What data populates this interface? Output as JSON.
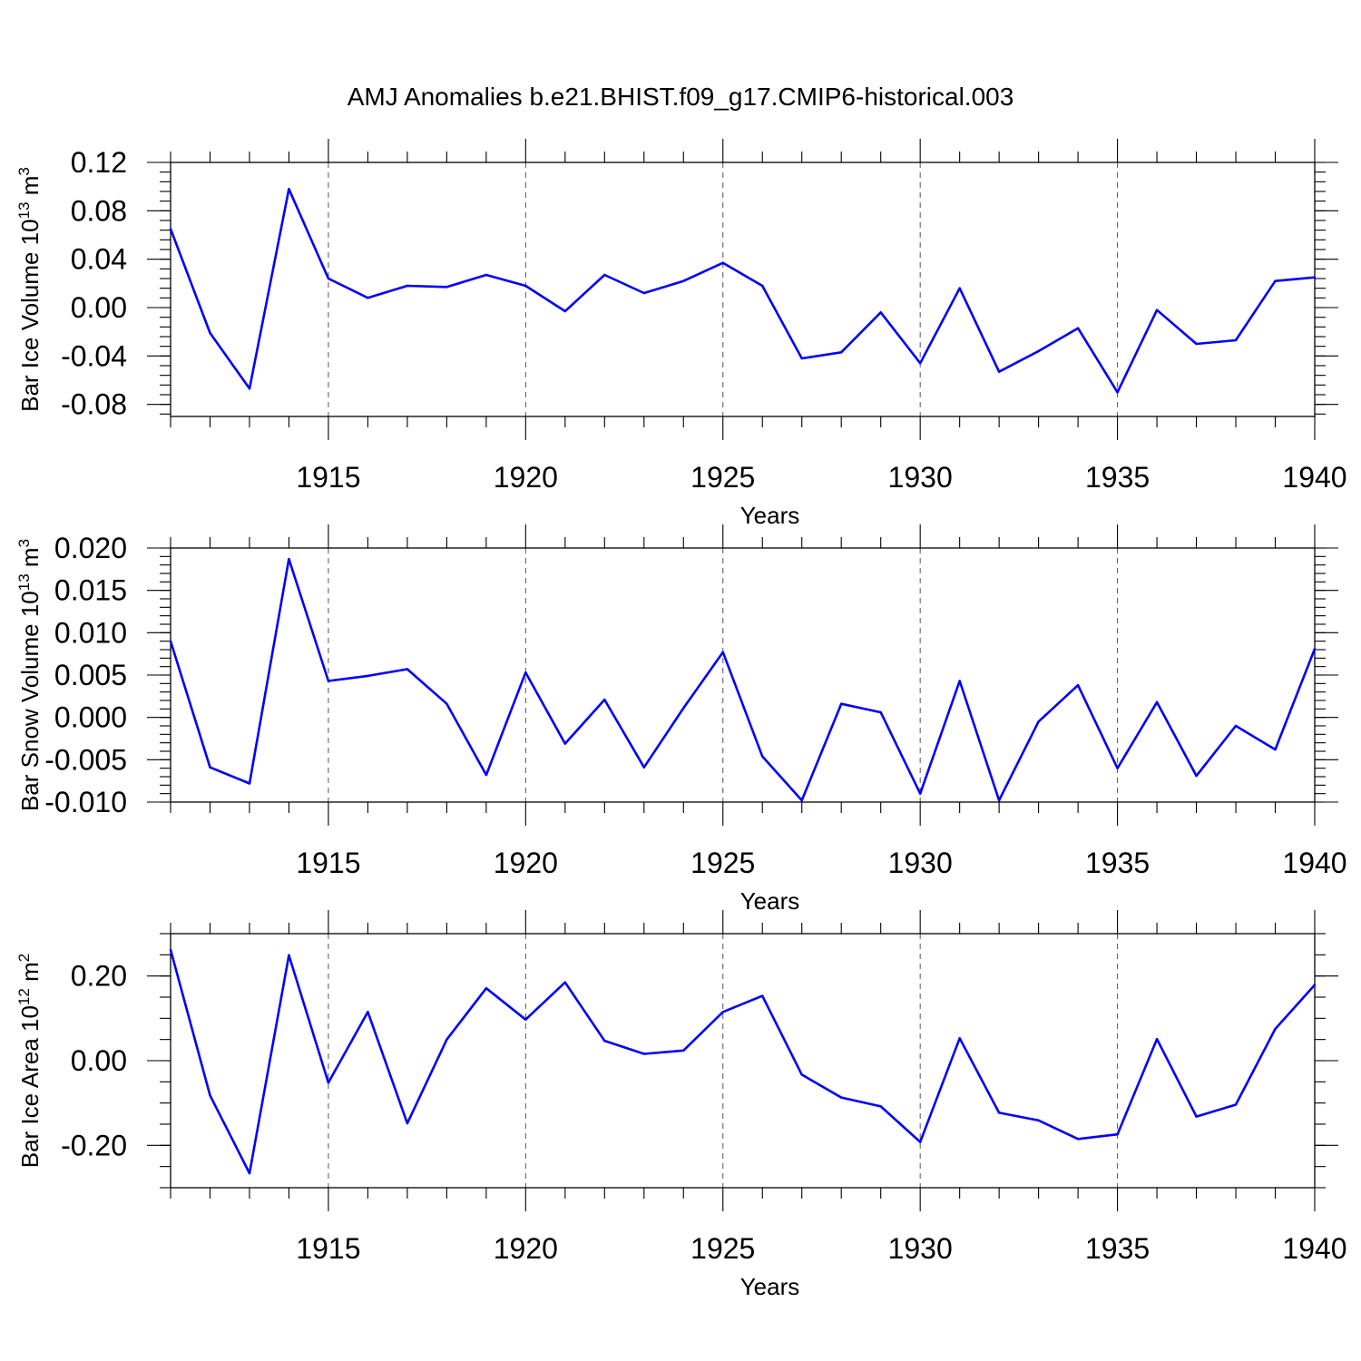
{
  "figure": {
    "title": "AMJ Anomalies b.e21.BHIST.f09_g17.CMIP6-historical.003"
  },
  "colors": {
    "series": "#0000ff",
    "axis": "#000000",
    "grid": "#555555"
  },
  "chart_data": [
    {
      "type": "line",
      "id": "ice-volume",
      "ylabel": "Bar Ice Volume 10",
      "ylabel_exp": "13",
      "ylabel_unit": " m",
      "ylabel_unit_exp": "3",
      "xlabel": "Years",
      "xlim": [
        1911,
        1940
      ],
      "ylim": [
        -0.09,
        0.12
      ],
      "yticks": [
        -0.08,
        -0.04,
        0.0,
        0.04,
        0.08,
        0.12
      ],
      "ytick_labels": [
        "-0.08",
        "-0.04",
        "0.00",
        "0.04",
        "0.08",
        "0.12"
      ],
      "yminor_step": 0.008,
      "xticks": [
        1915,
        1920,
        1925,
        1930,
        1935,
        1940
      ],
      "xtick_labels": [
        "1915",
        "1920",
        "1925",
        "1930",
        "1935",
        "1940"
      ],
      "x": [
        1911,
        1912,
        1913,
        1914,
        1915,
        1916,
        1917,
        1918,
        1919,
        1920,
        1921,
        1922,
        1923,
        1924,
        1925,
        1926,
        1927,
        1928,
        1929,
        1930,
        1931,
        1932,
        1933,
        1934,
        1935,
        1936,
        1937,
        1938,
        1939,
        1940
      ],
      "values": [
        0.065,
        -0.021,
        -0.067,
        0.098,
        0.024,
        0.008,
        0.018,
        0.017,
        0.027,
        0.018,
        -0.003,
        0.027,
        0.012,
        0.022,
        0.037,
        0.018,
        -0.042,
        -0.037,
        -0.004,
        -0.046,
        0.016,
        -0.053,
        -0.036,
        -0.017,
        -0.07,
        -0.002,
        -0.03,
        -0.027,
        0.022,
        0.025
      ]
    },
    {
      "type": "line",
      "id": "snow-volume",
      "ylabel": "Bar Snow Volume 10",
      "ylabel_exp": "13",
      "ylabel_unit": " m",
      "ylabel_unit_exp": "3",
      "xlabel": "Years",
      "xlim": [
        1911,
        1940
      ],
      "ylim": [
        -0.01,
        0.02
      ],
      "yticks": [
        -0.01,
        -0.005,
        0.0,
        0.005,
        0.01,
        0.015,
        0.02
      ],
      "ytick_labels": [
        "-0.010",
        "-0.005",
        "0.000",
        "0.005",
        "0.010",
        "0.015",
        "0.020"
      ],
      "yminor_step": 0.001,
      "xticks": [
        1915,
        1920,
        1925,
        1930,
        1935,
        1940
      ],
      "xtick_labels": [
        "1915",
        "1920",
        "1925",
        "1930",
        "1935",
        "1940"
      ],
      "x": [
        1911,
        1912,
        1913,
        1914,
        1915,
        1916,
        1917,
        1918,
        1919,
        1920,
        1921,
        1922,
        1923,
        1924,
        1925,
        1926,
        1927,
        1928,
        1929,
        1930,
        1931,
        1932,
        1933,
        1934,
        1935,
        1936,
        1937,
        1938,
        1939,
        1940
      ],
      "values": [
        0.009,
        -0.0059,
        -0.0078,
        0.0187,
        0.0043,
        0.0049,
        0.0057,
        0.0016,
        -0.0068,
        0.0053,
        -0.0031,
        0.0021,
        -0.0059,
        0.0011,
        0.0077,
        -0.0046,
        -0.0098,
        0.0016,
        0.0006,
        -0.009,
        0.0043,
        -0.0098,
        -0.0005,
        0.0038,
        -0.006,
        0.0018,
        -0.0069,
        -0.001,
        -0.0038,
        0.0081
      ]
    },
    {
      "type": "line",
      "id": "ice-area",
      "ylabel": "Bar Ice Area 10",
      "ylabel_exp": "12",
      "ylabel_unit": " m",
      "ylabel_unit_exp": "2",
      "xlabel": "Years",
      "xlim": [
        1911,
        1940
      ],
      "ylim": [
        -0.3,
        0.3
      ],
      "yticks": [
        -0.2,
        0.0,
        0.2
      ],
      "ytick_labels": [
        "-0.20",
        "0.00",
        "0.20"
      ],
      "yminor_step": 0.05,
      "xticks": [
        1915,
        1920,
        1925,
        1930,
        1935,
        1940
      ],
      "xtick_labels": [
        "1915",
        "1920",
        "1925",
        "1930",
        "1935",
        "1940"
      ],
      "x": [
        1911,
        1912,
        1913,
        1914,
        1915,
        1916,
        1917,
        1918,
        1919,
        1920,
        1921,
        1922,
        1923,
        1924,
        1925,
        1926,
        1927,
        1928,
        1929,
        1930,
        1931,
        1932,
        1933,
        1934,
        1935,
        1936,
        1937,
        1938,
        1939,
        1940
      ],
      "values": [
        0.262,
        -0.082,
        -0.266,
        0.249,
        -0.052,
        0.115,
        -0.148,
        0.05,
        0.171,
        0.097,
        0.185,
        0.047,
        0.016,
        0.024,
        0.115,
        0.153,
        -0.033,
        -0.087,
        -0.108,
        -0.192,
        0.053,
        -0.123,
        -0.141,
        -0.185,
        -0.174,
        0.051,
        -0.132,
        -0.104,
        0.075,
        0.179
      ]
    }
  ]
}
